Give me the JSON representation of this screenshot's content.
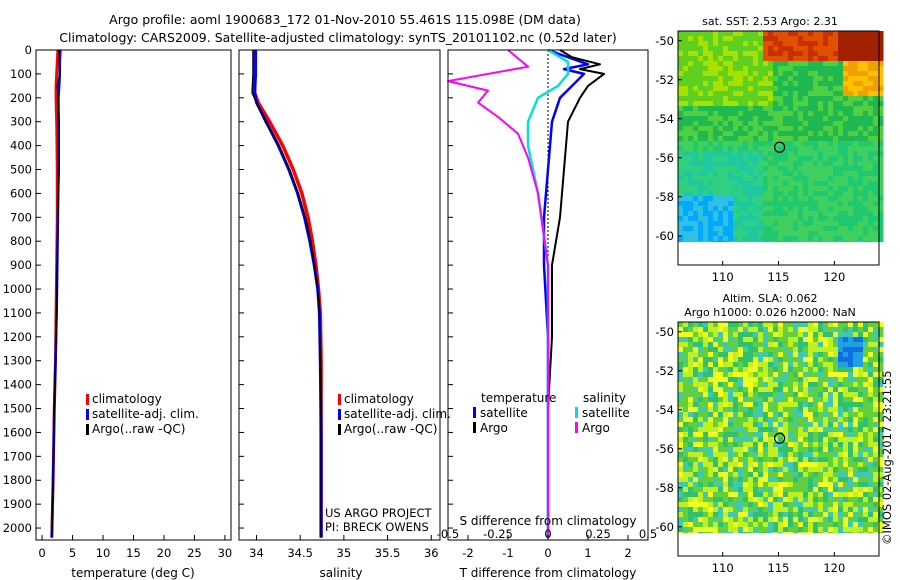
{
  "figure": {
    "title_line1": "Argo profile: aoml 1900683_172 01-Nov-2010 55.461S 115.098E (DM data)",
    "title_line2": "Climatology: CARS2009. Satellite-adjusted climatology: synTS_20101102.nc (0.52d later)",
    "project_line1": "US ARGO PROJECT",
    "project_line2": "PI: BRECK OWENS",
    "stamp": "©IMOS 02-Aug-2017 23:21:55"
  },
  "colors": {
    "climatology": "#ff0000",
    "satellite": "#0000ff",
    "argo": "#000000",
    "satellite_s": "#00e0e0",
    "argo_s": "#ff00ff"
  },
  "chart_data": [
    {
      "type": "line",
      "xlabel": "temperature (deg C)",
      "ylabel": "",
      "xlim": [
        -1,
        31
      ],
      "ylim": [
        2050,
        0
      ],
      "xticks": [
        "0",
        "5",
        "10",
        "15",
        "20",
        "25",
        "30"
      ],
      "xtick_values": [
        0,
        5,
        10,
        15,
        20,
        25,
        30
      ],
      "yticks": [
        "0",
        "100",
        "200",
        "300",
        "400",
        "500",
        "600",
        "700",
        "800",
        "900",
        "1000",
        "1100",
        "1200",
        "1300",
        "1400",
        "1500",
        "1600",
        "1700",
        "1800",
        "1900",
        "2000"
      ],
      "ytick_values": [
        0,
        100,
        200,
        300,
        400,
        500,
        600,
        700,
        800,
        900,
        1000,
        1100,
        1200,
        1300,
        1400,
        1500,
        1600,
        1700,
        1800,
        1900,
        2000
      ],
      "legend": [
        "climatology",
        "satellite-adj. clim.",
        "Argo(..raw -QC)"
      ],
      "series": [
        {
          "name": "climatology",
          "color": "#ff0000",
          "x": [
            2.6,
            2.5,
            2.4,
            2.3,
            2.3,
            2.4,
            2.5,
            2.5,
            2.4,
            2.3,
            2.2,
            2.0,
            1.8,
            1.6
          ],
          "y": [
            0,
            50,
            100,
            150,
            200,
            300,
            500,
            700,
            900,
            1100,
            1300,
            1500,
            1800,
            2040
          ]
        },
        {
          "name": "satellite-adj. clim.",
          "color": "#0000ff",
          "x": [
            3.0,
            2.9,
            2.9,
            2.8,
            2.7,
            2.7,
            2.7,
            2.6,
            2.5,
            2.4,
            2.2,
            2.0,
            1.8,
            1.6
          ],
          "y": [
            0,
            50,
            100,
            150,
            200,
            300,
            500,
            700,
            900,
            1100,
            1300,
            1500,
            1800,
            2040
          ]
        },
        {
          "name": "Argo(..raw -QC)",
          "color": "#000000",
          "x": [
            2.8,
            2.8,
            3.0,
            2.5,
            2.7,
            2.8,
            2.8,
            2.6,
            2.5,
            2.4,
            2.2,
            2.0,
            1.8,
            1.6
          ],
          "y": [
            0,
            50,
            90,
            150,
            220,
            300,
            500,
            700,
            900,
            1100,
            1300,
            1500,
            1800,
            2040
          ]
        }
      ]
    },
    {
      "type": "line",
      "xlabel": "salinity",
      "ylabel": "",
      "xlim": [
        33.8,
        36.1
      ],
      "ylim": [
        2050,
        0
      ],
      "xticks": [
        "34",
        "34.5",
        "35",
        "35.5",
        "36"
      ],
      "xtick_values": [
        34,
        34.5,
        35,
        35.5,
        36
      ],
      "legend": [
        "climatology",
        "satellite-adj. clim.",
        "Argo(..raw -QC)"
      ],
      "series": [
        {
          "name": "climatology",
          "color": "#ff0000",
          "x": [
            33.98,
            33.98,
            33.98,
            34.02,
            34.15,
            34.3,
            34.42,
            34.52,
            34.59,
            34.64,
            34.68,
            34.71,
            34.73,
            34.74,
            34.74,
            34.74
          ],
          "y": [
            0,
            100,
            180,
            220,
            300,
            400,
            500,
            600,
            700,
            800,
            900,
            1000,
            1100,
            1300,
            1600,
            2040
          ]
        },
        {
          "name": "satellite-adj. clim.",
          "color": "#0000ff",
          "x": [
            33.99,
            33.99,
            33.98,
            34.0,
            34.11,
            34.25,
            34.37,
            34.47,
            34.55,
            34.61,
            34.66,
            34.7,
            34.72,
            34.73,
            34.74,
            34.74
          ],
          "y": [
            0,
            100,
            180,
            220,
            300,
            400,
            500,
            600,
            700,
            800,
            900,
            1000,
            1100,
            1300,
            1600,
            2040
          ]
        },
        {
          "name": "Argo(..raw -QC)",
          "color": "#000000",
          "x": [
            33.96,
            33.96,
            33.95,
            34.0,
            34.1,
            34.26,
            34.38,
            34.48,
            34.56,
            34.62,
            34.66,
            34.7,
            34.72,
            34.73,
            34.74,
            34.74
          ],
          "y": [
            0,
            100,
            180,
            220,
            300,
            400,
            500,
            600,
            700,
            800,
            900,
            1000,
            1100,
            1300,
            1600,
            2040
          ]
        }
      ]
    },
    {
      "type": "line",
      "xlabel": "T difference from climatology",
      "x2label": "S difference from climatology",
      "xlim": [
        -2.5,
        2.5
      ],
      "ylim": [
        2050,
        0
      ],
      "xticks": [
        "-2",
        "-1",
        "0",
        "1",
        "2"
      ],
      "xtick_values": [
        -2,
        -1,
        0,
        1,
        2
      ],
      "x2ticks": [
        "-0.5",
        "-0.25",
        "0",
        "0.25",
        "0.5"
      ],
      "x2tick_values": [
        -0.5,
        -0.25,
        0,
        0.25,
        0.5
      ],
      "legend_left_title": "temperature",
      "legend_right_title": "salinity",
      "legend": [
        "satellite",
        "Argo",
        "satellite",
        "Argo"
      ],
      "series": [
        {
          "name": "satellite",
          "color": "#0000ff",
          "x": [
            0.0,
            0.5,
            1.0,
            0.4,
            0.9,
            0.6,
            0.3,
            0.1,
            0.0,
            -0.1,
            -0.1,
            0.0,
            0.0,
            0.0,
            0.0
          ],
          "y": [
            0,
            30,
            60,
            80,
            100,
            150,
            200,
            300,
            500,
            700,
            900,
            1200,
            1500,
            1800,
            2040
          ]
        },
        {
          "name": "Argo",
          "color": "#000000",
          "x": [
            0.3,
            0.6,
            1.3,
            0.8,
            1.4,
            1.0,
            0.8,
            0.5,
            0.4,
            0.3,
            0.1,
            0.1,
            0.0,
            0.0,
            0.0
          ],
          "y": [
            0,
            30,
            60,
            80,
            100,
            150,
            200,
            300,
            500,
            700,
            900,
            1200,
            1500,
            1800,
            2040
          ]
        },
        {
          "name": "satellite",
          "color": "#00e0e0",
          "x": [
            0.0,
            0.1,
            0.1,
            0.05,
            -0.05,
            -0.1,
            -0.1,
            -0.05,
            0.0,
            0.0,
            0.0,
            0.0,
            0.0
          ],
          "y": [
            0,
            50,
            100,
            150,
            200,
            300,
            400,
            600,
            900,
            1200,
            1500,
            1800,
            2040
          ]
        },
        {
          "name": "Argo",
          "color": "#ff00ff",
          "x": [
            -0.2,
            -0.1,
            -0.5,
            -0.3,
            -0.35,
            -0.25,
            -0.15,
            -0.1,
            -0.05,
            0.0,
            0.0,
            0.0,
            0.0
          ],
          "y": [
            0,
            70,
            130,
            170,
            220,
            280,
            350,
            450,
            600,
            900,
            1200,
            1600,
            2040
          ]
        }
      ]
    },
    {
      "type": "heatmap",
      "title": "sat. SST: 2.53 Argo: 2.31",
      "xlim": [
        106,
        124
      ],
      "ylim": [
        -61.5,
        -49.5
      ],
      "xticks": [
        "110",
        "115",
        "120"
      ],
      "xtick_values": [
        110,
        115,
        120
      ],
      "yticks": [
        "-50",
        "-52",
        "-54",
        "-56",
        "-58",
        "-60"
      ],
      "ytick_values": [
        -50,
        -52,
        -54,
        -56,
        -58,
        -60
      ],
      "marker": {
        "lon": 115.098,
        "lat": -55.461
      }
    },
    {
      "type": "heatmap",
      "title_line1": "Altim. SLA: 0.062",
      "title_line2": "Argo h1000: 0.026 h2000: NaN",
      "xlim": [
        106,
        124
      ],
      "ylim": [
        -61.5,
        -49.5
      ],
      "xticks": [
        "110",
        "115",
        "120"
      ],
      "xtick_values": [
        110,
        115,
        120
      ],
      "yticks": [
        "-50",
        "-52",
        "-54",
        "-56",
        "-58",
        "-60"
      ],
      "ytick_values": [
        -50,
        -52,
        -54,
        -56,
        -58,
        -60
      ],
      "marker": {
        "lon": 115.098,
        "lat": -55.461
      }
    }
  ]
}
